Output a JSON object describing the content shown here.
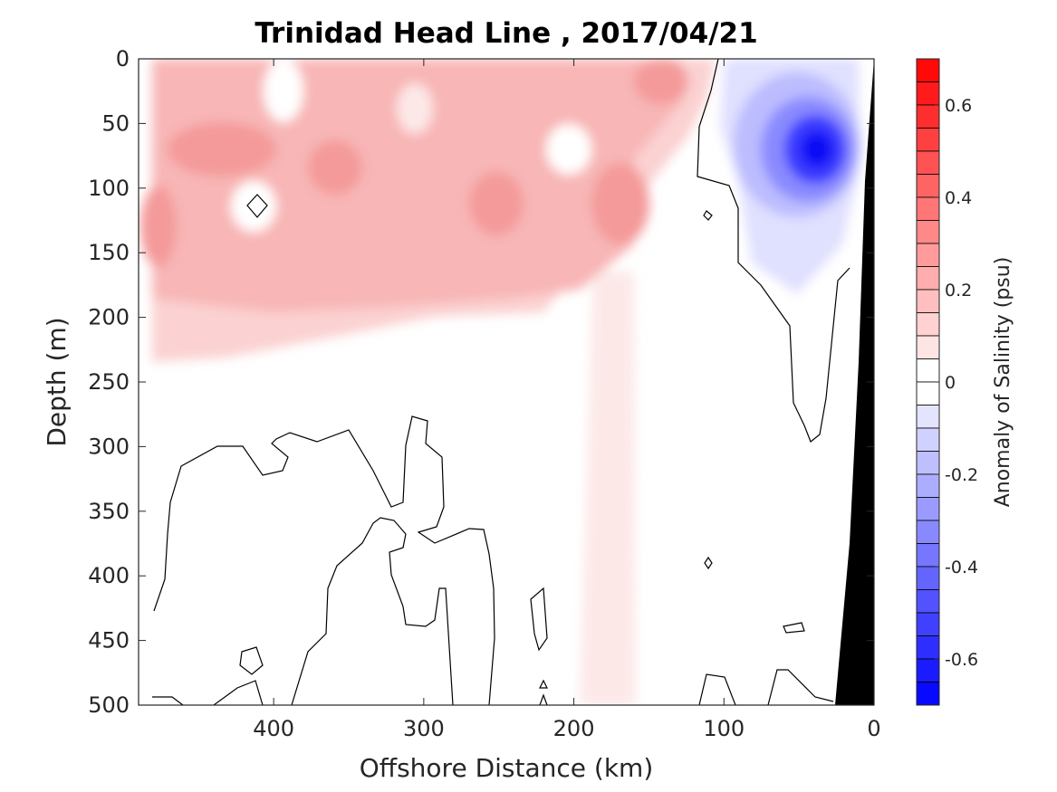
{
  "chart_data": {
    "type": "heatmap",
    "title": "Trinidad Head Line , 2017/04/21",
    "xlabel": "Offshore Distance (km)",
    "ylabel": "Depth (m)",
    "xlim": [
      490,
      0
    ],
    "ylim": [
      0,
      500
    ],
    "x_reversed": true,
    "y_reversed": true,
    "x_ticks": [
      400,
      300,
      200,
      100,
      0
    ],
    "y_ticks": [
      0,
      50,
      100,
      150,
      200,
      250,
      300,
      350,
      400,
      450,
      500
    ],
    "colorbar": {
      "label": "Anomaly of Salinity (psu)",
      "range": [
        -0.7,
        0.7
      ],
      "step": 0.05,
      "ticks": [
        0.6,
        0.4,
        0.2,
        0,
        -0.2,
        -0.4,
        -0.6
      ],
      "max_color": "#ff0000",
      "min_color": "#0000ff",
      "mid_color": "#ffffff"
    },
    "land_color": "#000000",
    "contour_line_color": "#000000",
    "features": [
      {
        "kind": "positive-anomaly",
        "x_range": [
          480,
          120
        ],
        "depth_range": [
          0,
          230
        ],
        "peak": 0.4
      },
      {
        "kind": "positive-anomaly",
        "x_range": [
          195,
          160
        ],
        "depth_range": [
          200,
          500
        ],
        "peak": 0.05
      },
      {
        "kind": "negative-anomaly",
        "x_range": [
          100,
          15
        ],
        "depth_range": [
          0,
          180
        ],
        "center": [
          40,
          75
        ],
        "peak": -0.65
      },
      {
        "kind": "land",
        "x_range": [
          25,
          0
        ],
        "depth_range": [
          0,
          500
        ]
      }
    ]
  }
}
